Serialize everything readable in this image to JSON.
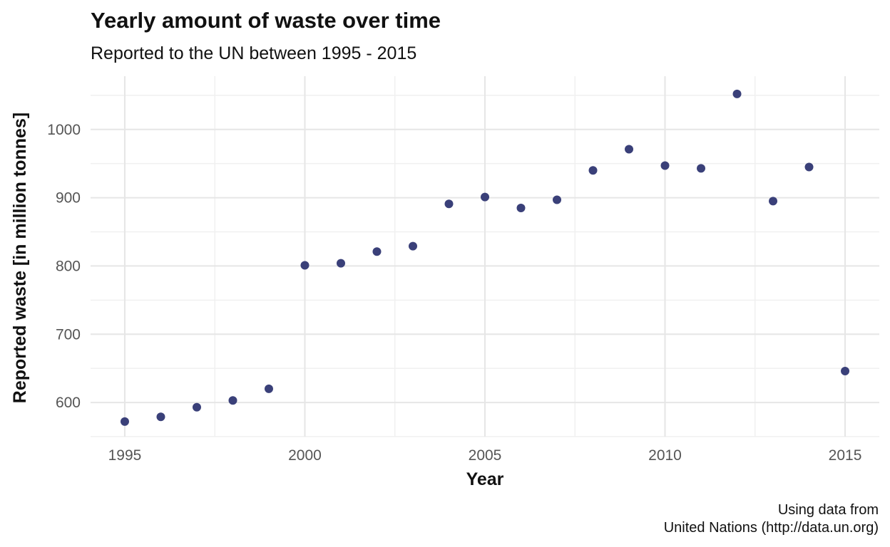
{
  "chart_data": {
    "type": "scatter",
    "title": "Yearly amount of waste over time",
    "subtitle": "Reported to the UN between 1995 - 2015",
    "xlabel": "Year",
    "ylabel": "Reported waste [in million tonnes]",
    "caption_lines": [
      "Using data from",
      "United Nations (http://data.un.org)"
    ],
    "x": [
      1995,
      1996,
      1997,
      1998,
      1999,
      2000,
      2001,
      2002,
      2003,
      2004,
      2005,
      2006,
      2007,
      2008,
      2009,
      2010,
      2011,
      2012,
      2013,
      2014,
      2015
    ],
    "y": [
      572,
      579,
      593,
      603,
      620,
      801,
      804,
      821,
      829,
      891,
      901,
      885,
      897,
      940,
      971,
      947,
      943,
      1052,
      895,
      945,
      646
    ],
    "xlim": [
      1994.05,
      2015.95
    ],
    "ylim": [
      550,
      1078
    ],
    "x_ticks": [
      1995,
      2000,
      2005,
      2010,
      2015
    ],
    "y_ticks": [
      600,
      700,
      800,
      900,
      1000
    ],
    "grid": true,
    "point_color": "#3a4079"
  }
}
